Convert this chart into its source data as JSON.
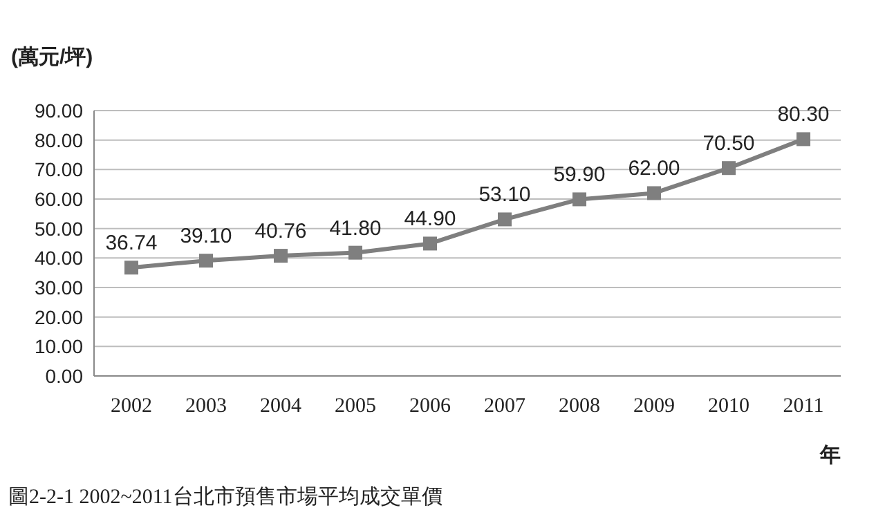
{
  "chart_data": {
    "type": "line",
    "ylabel": "(萬元/坪)",
    "xlabel": "年",
    "categories": [
      "2002",
      "2003",
      "2004",
      "2005",
      "2006",
      "2007",
      "2008",
      "2009",
      "2010",
      "2011"
    ],
    "values": [
      36.74,
      39.1,
      40.76,
      41.8,
      44.9,
      53.1,
      59.9,
      62,
      70.5,
      80.3
    ],
    "value_labels": [
      "36.74",
      "39.10",
      "40.76",
      "41.80",
      "44.90",
      "53.10",
      "59.90",
      "62.00",
      "70.50",
      "80.30"
    ],
    "color": "#7f7f7f",
    "marker": "square",
    "line_style": "solid",
    "grid": "y",
    "ylim": [
      0,
      90
    ],
    "yticks": [
      {
        "value": 0,
        "label": "0.00"
      },
      {
        "value": 10,
        "label": "10.00"
      },
      {
        "value": 20,
        "label": "20.00"
      },
      {
        "value": 30,
        "label": "30.00"
      },
      {
        "value": 40,
        "label": "40.00"
      },
      {
        "value": 50,
        "label": "50.00"
      },
      {
        "value": 60,
        "label": "60.00"
      },
      {
        "value": 70,
        "label": "70.00"
      },
      {
        "value": 80,
        "label": "80.00"
      },
      {
        "value": 90,
        "label": "90.00"
      }
    ],
    "annotations": [
      "圖2-2-1  2002~2011台北市預售市場平均成交單價"
    ]
  }
}
